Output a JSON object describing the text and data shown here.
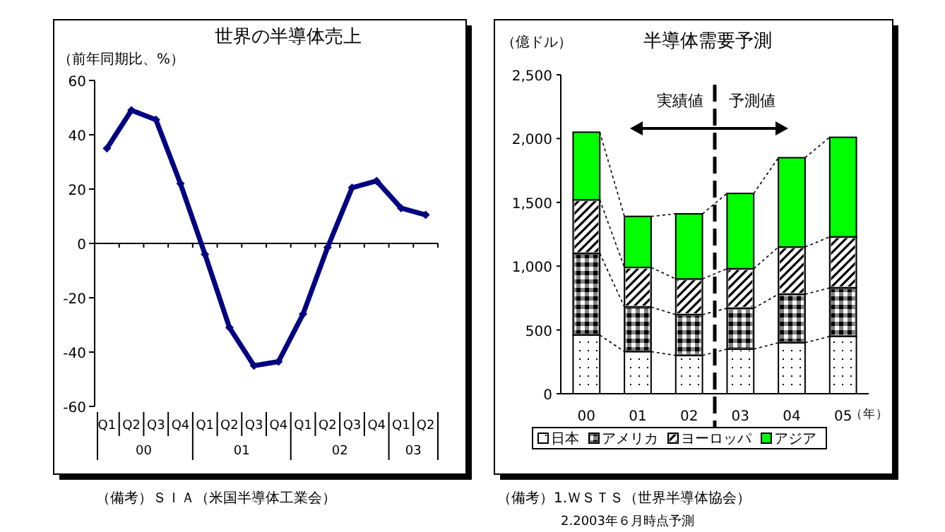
{
  "chart_data": [
    {
      "type": "line",
      "title": "世界の半導体売上",
      "ylabel": "（前年同期比、%）",
      "categories": [
        "Q1",
        "Q2",
        "Q3",
        "Q4",
        "Q1",
        "Q2",
        "Q3",
        "Q4",
        "Q1",
        "Q2",
        "Q3",
        "Q4",
        "Q1",
        "Q2"
      ],
      "series": [
        {
          "color": "#000080",
          "values": [
            35,
            49,
            45.5,
            22,
            -4,
            -31,
            -45,
            -43.5,
            -26,
            -1.5,
            20.5,
            23,
            13,
            10.5
          ]
        }
      ],
      "ylim": [
        -60,
        60
      ],
      "yticks": [
        -60,
        -40,
        -20,
        0,
        20,
        40,
        60
      ],
      "marker": "diamond",
      "annotations": [
        "00",
        "01",
        "02",
        "03",
        "（備考）ＳＩＡ（米国半導体工業会）"
      ]
    },
    {
      "type": "bar",
      "stacked": true,
      "title": "半導体需要予測",
      "ylabel": "（億ドル）",
      "xlabel": "（年）",
      "categories": [
        "00",
        "01",
        "02",
        "03",
        "04",
        "05"
      ],
      "series": [
        {
          "name": "日本",
          "color": "#ffffff",
          "values": [
            460,
            330,
            300,
            350,
            400,
            450
          ]
        },
        {
          "name": "アメリカ",
          "color": "#808080",
          "values": [
            640,
            350,
            320,
            320,
            380,
            380
          ]
        },
        {
          "name": "ヨーロッパ",
          "color": "#c0c0c0",
          "values": [
            420,
            310,
            280,
            310,
            370,
            400
          ]
        },
        {
          "name": "アジア",
          "color": "#00ff00",
          "values": [
            530,
            400,
            510,
            590,
            700,
            780
          ]
        }
      ],
      "ylim": [
        0,
        2500
      ],
      "yticks": [
        0,
        {
          "value": 500,
          "label": "500"
        },
        {
          "value": 1000,
          "label": "1,000"
        },
        {
          "value": 1500,
          "label": "1,500"
        },
        {
          "value": 2000,
          "label": "2,000"
        },
        {
          "value": 2500,
          "label": "2,500"
        }
      ],
      "legend": "bottom",
      "annotations": [
        "実績値",
        "予測値",
        "（備考）1.ＷＳＴＳ（世界半導体協会）",
        "2.2003年６月時点予測"
      ]
    }
  ]
}
